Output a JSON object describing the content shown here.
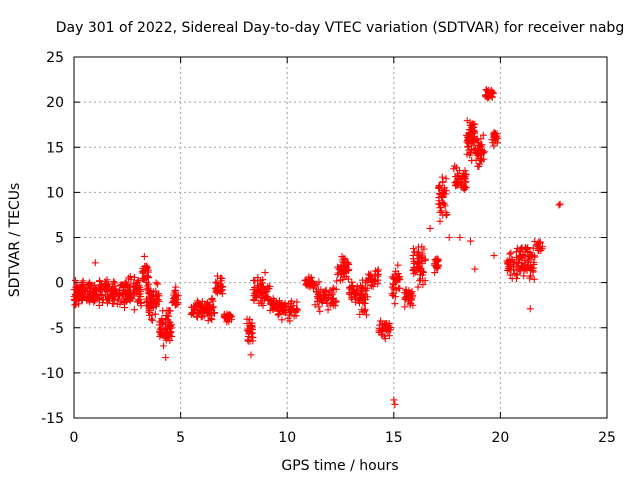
{
  "chart_data": {
    "type": "scatter",
    "title": "Day 301 of 2022, Sidereal Day-to-day VTEC variation (SDTVAR) for receiver nabg",
    "xlabel": "GPS time / hours",
    "ylabel": "SDTVAR / TECUs",
    "xlim": [
      0,
      25
    ],
    "ylim": [
      -15,
      25
    ],
    "xticks": [
      0,
      5,
      10,
      15,
      20,
      25
    ],
    "yticks": [
      -15,
      -10,
      -5,
      0,
      5,
      10,
      15,
      20,
      25
    ],
    "grid": true,
    "legend": "none",
    "marker": "+",
    "colors": {
      "series": "#ff0000",
      "grid": "#a0a0a0",
      "axis": "#000000"
    },
    "segments": [
      {
        "x0": 0.0,
        "x1": 1.0,
        "mean": -1.0,
        "spread": 2.0,
        "n": 90
      },
      {
        "x0": 1.0,
        "x1": 3.2,
        "mean": -1.0,
        "spread": 2.2,
        "n": 170
      },
      {
        "x0": 3.2,
        "x1": 3.5,
        "mean": 1.0,
        "spread": 2.0,
        "n": 25
      },
      {
        "x0": 3.4,
        "x1": 4.0,
        "mean": -2.0,
        "spread": 2.5,
        "n": 60
      },
      {
        "x0": 4.0,
        "x1": 4.6,
        "mean": -5.0,
        "spread": 3.0,
        "n": 60
      },
      {
        "x0": 4.6,
        "x1": 4.9,
        "mean": -1.5,
        "spread": 2.0,
        "n": 25
      },
      {
        "x0": 5.5,
        "x1": 6.6,
        "mean": -3.0,
        "spread": 1.5,
        "n": 70
      },
      {
        "x0": 6.6,
        "x1": 7.0,
        "mean": -0.5,
        "spread": 1.5,
        "n": 25
      },
      {
        "x0": 7.0,
        "x1": 7.4,
        "mean": -3.8,
        "spread": 0.6,
        "n": 25
      },
      {
        "x0": 8.1,
        "x1": 8.4,
        "mean": -5.5,
        "spread": 2.5,
        "n": 30
      },
      {
        "x0": 8.4,
        "x1": 9.2,
        "mean": -1.0,
        "spread": 2.2,
        "n": 60
      },
      {
        "x0": 9.2,
        "x1": 9.5,
        "mean": -2.5,
        "spread": 1.2,
        "n": 20
      },
      {
        "x0": 9.5,
        "x1": 10.5,
        "mean": -3.0,
        "spread": 1.5,
        "n": 60
      },
      {
        "x0": 10.8,
        "x1": 11.3,
        "mean": 0.0,
        "spread": 1.0,
        "n": 25
      },
      {
        "x0": 11.3,
        "x1": 12.3,
        "mean": -1.5,
        "spread": 2.0,
        "n": 60
      },
      {
        "x0": 12.3,
        "x1": 12.9,
        "mean": 1.5,
        "spread": 2.0,
        "n": 40
      },
      {
        "x0": 12.9,
        "x1": 13.3,
        "mean": -1.0,
        "spread": 1.5,
        "n": 25
      },
      {
        "x0": 13.3,
        "x1": 13.8,
        "mean": -1.5,
        "spread": 2.5,
        "n": 40
      },
      {
        "x0": 13.8,
        "x1": 14.3,
        "mean": 0.5,
        "spread": 1.5,
        "n": 30
      },
      {
        "x0": 14.3,
        "x1": 14.9,
        "mean": -5.0,
        "spread": 1.2,
        "n": 35
      },
      {
        "x0": 14.9,
        "x1": 15.3,
        "mean": 0.0,
        "spread": 2.5,
        "n": 30
      },
      {
        "x0": 15.5,
        "x1": 15.9,
        "mean": -1.5,
        "spread": 1.5,
        "n": 30
      },
      {
        "x0": 15.9,
        "x1": 16.5,
        "mean": 2.0,
        "spread": 3.0,
        "n": 55
      },
      {
        "x0": 16.9,
        "x1": 17.1,
        "mean": 2.0,
        "spread": 1.5,
        "n": 20
      },
      {
        "x0": 17.1,
        "x1": 17.5,
        "mean": 9.5,
        "spread": 3.5,
        "n": 40
      },
      {
        "x0": 17.8,
        "x1": 18.4,
        "mean": 11.5,
        "spread": 2.0,
        "n": 45
      },
      {
        "x0": 18.4,
        "x1": 18.8,
        "mean": 16.0,
        "spread": 3.5,
        "n": 55
      },
      {
        "x0": 18.8,
        "x1": 19.3,
        "mean": 14.5,
        "spread": 2.5,
        "n": 40
      },
      {
        "x0": 19.3,
        "x1": 19.7,
        "mean": 20.8,
        "spread": 0.9,
        "n": 25
      },
      {
        "x0": 19.6,
        "x1": 19.9,
        "mean": 16.0,
        "spread": 1.2,
        "n": 20
      },
      {
        "x0": 20.3,
        "x1": 20.9,
        "mean": 2.0,
        "spread": 2.2,
        "n": 40
      },
      {
        "x0": 20.9,
        "x1": 21.7,
        "mean": 2.5,
        "spread": 3.0,
        "n": 60
      },
      {
        "x0": 21.7,
        "x1": 22.0,
        "mean": 4.0,
        "spread": 1.0,
        "n": 15
      }
    ],
    "outliers": [
      [
        15.0,
        -13.0
      ],
      [
        15.05,
        -13.5
      ],
      [
        22.8,
        8.7
      ],
      [
        22.75,
        8.6
      ],
      [
        18.6,
        4.6
      ],
      [
        18.8,
        1.5
      ],
      [
        19.7,
        3.0
      ],
      [
        18.1,
        5.0
      ],
      [
        17.6,
        5.0
      ],
      [
        16.7,
        6.0
      ],
      [
        4.3,
        -8.3
      ],
      [
        8.3,
        -8.0
      ],
      [
        14.6,
        -6.2
      ],
      [
        21.4,
        -2.9
      ],
      [
        3.3,
        2.9
      ],
      [
        1.0,
        2.2
      ]
    ]
  }
}
